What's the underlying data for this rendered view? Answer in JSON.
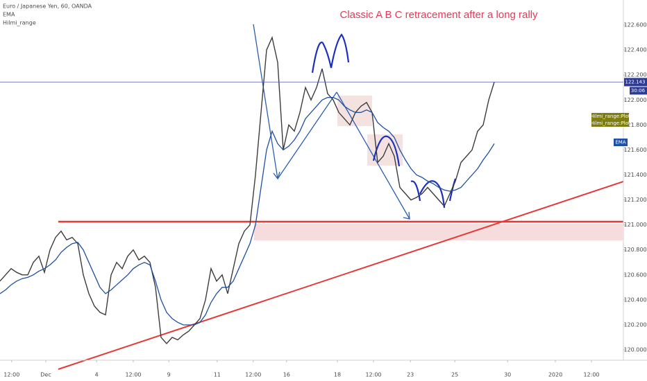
{
  "chart_data": {
    "type": "line",
    "title": "Classic A B C retracement after a long rally",
    "indicators": [
      "EMA",
      "Hilmi_range"
    ],
    "x": [
      0,
      1,
      2,
      3,
      4,
      5,
      6,
      7,
      8,
      9,
      10,
      11,
      12,
      13,
      14,
      15,
      16,
      17,
      18,
      19,
      20,
      21,
      22,
      23,
      24,
      25,
      26,
      27,
      28,
      29,
      30,
      31,
      32,
      33,
      34,
      35,
      36,
      37,
      38,
      39,
      40,
      41,
      42,
      43,
      44,
      45,
      46,
      47,
      48,
      49,
      50,
      51,
      52,
      53,
      54,
      55,
      56,
      57,
      58,
      59,
      60,
      61,
      62,
      63,
      64,
      65,
      66,
      67,
      68,
      69,
      70,
      71,
      72,
      73,
      74,
      75,
      76,
      77,
      78,
      79,
      80,
      81,
      82,
      83,
      84,
      85,
      86,
      87,
      88,
      89
    ],
    "series": [
      {
        "name": "Euro / Japanese Yen, 60, OANDA",
        "color": "#3b3b3b",
        "values": [
          120.55,
          120.6,
          120.65,
          120.62,
          120.6,
          120.6,
          120.7,
          120.75,
          120.62,
          120.8,
          120.9,
          120.95,
          120.88,
          120.9,
          120.85,
          120.6,
          120.45,
          120.35,
          120.3,
          120.28,
          120.6,
          120.7,
          120.65,
          120.75,
          120.8,
          120.72,
          120.75,
          120.7,
          120.5,
          120.1,
          120.05,
          120.1,
          120.08,
          120.12,
          120.15,
          120.2,
          120.25,
          120.4,
          120.65,
          120.55,
          120.6,
          120.45,
          120.65,
          120.85,
          120.95,
          121.0,
          121.4,
          121.9,
          122.4,
          122.5,
          122.3,
          121.6,
          121.8,
          121.75,
          121.9,
          122.1,
          122.0,
          122.1,
          122.25,
          122.05,
          122.0,
          121.9,
          121.85,
          121.8,
          121.9,
          121.95,
          121.98,
          121.9,
          121.5,
          121.55,
          121.65,
          121.55,
          121.3,
          121.25,
          121.2,
          121.22,
          121.25,
          121.3,
          121.25,
          121.2,
          121.15,
          121.25,
          121.35,
          121.5,
          121.55,
          121.6,
          121.75,
          121.8,
          122.0,
          122.143
        ]
      },
      {
        "name": "EMA",
        "color": "#1e4fa0",
        "values": [
          120.45,
          120.48,
          120.52,
          120.55,
          120.57,
          120.58,
          120.6,
          120.63,
          120.65,
          120.68,
          120.72,
          120.78,
          120.82,
          120.85,
          120.86,
          120.8,
          120.7,
          120.6,
          120.5,
          120.45,
          120.48,
          120.52,
          120.56,
          120.6,
          120.65,
          120.68,
          120.7,
          120.68,
          120.55,
          120.4,
          120.3,
          120.25,
          120.22,
          120.2,
          120.2,
          120.2,
          120.22,
          120.28,
          120.38,
          120.45,
          120.5,
          120.5,
          120.55,
          120.65,
          120.75,
          120.85,
          121.0,
          121.3,
          121.6,
          121.75,
          121.65,
          121.6,
          121.63,
          121.68,
          121.75,
          121.85,
          121.9,
          121.95,
          122.0,
          122.02,
          122.02,
          122.0,
          121.95,
          121.92,
          121.9,
          121.9,
          121.92,
          121.9,
          121.82,
          121.78,
          121.75,
          121.7,
          121.6,
          121.52,
          121.45,
          121.4,
          121.38,
          121.35,
          121.33,
          121.3,
          121.28,
          121.27,
          121.28,
          121.3,
          121.35,
          121.4,
          121.45,
          121.52,
          121.58,
          121.65
        ]
      }
    ],
    "last_price": {
      "value": 122.143,
      "label": "122.143"
    },
    "countdown": "30:06",
    "plot_labels": [
      "Hilmi_range:Plot",
      "Hilmi_range:Plot"
    ],
    "ema_label": "EMA",
    "xlim": [
      0,
      112.25
    ],
    "ylim": [
      119.917,
      122.8
    ],
    "xticks": [
      {
        "value": 2.1,
        "label": "12:00"
      },
      {
        "value": 8.25,
        "label": "Dec"
      },
      {
        "value": 17.4,
        "label": "4"
      },
      {
        "value": 24,
        "label": "12:00"
      },
      {
        "value": 30.4,
        "label": "9"
      },
      {
        "value": 39.1,
        "label": "11"
      },
      {
        "value": 45.6,
        "label": "12:00"
      },
      {
        "value": 51.6,
        "label": "16"
      },
      {
        "value": 60.75,
        "label": "18"
      },
      {
        "value": 67.25,
        "label": "12:00"
      },
      {
        "value": 73.9,
        "label": "23"
      },
      {
        "value": 81.9,
        "label": "25"
      },
      {
        "value": 91.4,
        "label": "30"
      },
      {
        "value": 100,
        "label": "2020"
      },
      {
        "value": 106.5,
        "label": "12:00"
      }
    ],
    "yticks": [
      {
        "value": 120,
        "label": "120.000"
      },
      {
        "value": 120.2,
        "label": "120.200"
      },
      {
        "value": 120.4,
        "label": "120.400"
      },
      {
        "value": 120.6,
        "label": "120.600"
      },
      {
        "value": 120.8,
        "label": "120.800"
      },
      {
        "value": 121,
        "label": "121.000"
      },
      {
        "value": 121.2,
        "label": "121.200"
      },
      {
        "value": 121.4,
        "label": "121.400"
      },
      {
        "value": 121.6,
        "label": "121.600"
      },
      {
        "value": 121.8,
        "label": "121.800"
      },
      {
        "value": 122,
        "label": "122.000"
      },
      {
        "value": 122.2,
        "label": "122.200"
      },
      {
        "value": 122.4,
        "label": "122.400"
      },
      {
        "value": 122.6,
        "label": "122.600"
      }
    ],
    "grid": false
  }
}
